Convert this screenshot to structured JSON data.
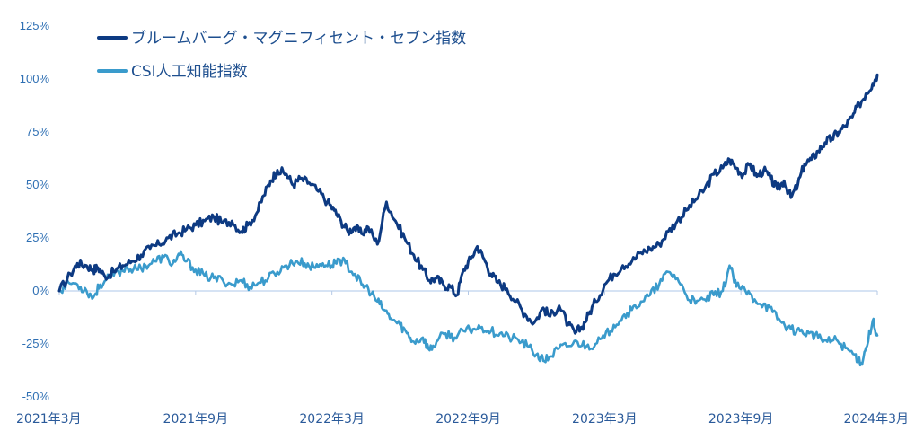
{
  "chart_data": {
    "type": "line",
    "title": "",
    "xlabel": "",
    "ylabel": "",
    "ylim": [
      -50,
      125
    ],
    "yticks": [
      -50,
      -25,
      0,
      25,
      50,
      75,
      100,
      125
    ],
    "ytick_labels": [
      "-50%",
      "-25%",
      "0%",
      "25%",
      "50%",
      "75%",
      "100%",
      "125%"
    ],
    "xlim": [
      0,
      36
    ],
    "xticks": [
      0,
      6,
      12,
      18,
      24,
      30,
      36
    ],
    "xtick_labels": [
      "2021年3月",
      "2021年9月",
      "2022年3月",
      "2022年9月",
      "2023年3月",
      "2023年9月",
      "2024年3月"
    ],
    "x_unit": "months since 2021年3月",
    "legend_position": "top-left",
    "zero_line": true,
    "series": [
      {
        "name": "ブルームバーグ・マグニフィセント・セブン指数",
        "color": "#0d3a82",
        "points": [
          [
            0,
            0
          ],
          [
            0.5,
            8
          ],
          [
            0.8,
            13
          ],
          [
            1.2,
            12
          ],
          [
            1.5,
            10
          ],
          [
            1.7,
            11
          ],
          [
            2,
            7
          ],
          [
            2.4,
            9
          ],
          [
            2.8,
            12
          ],
          [
            3.2,
            14
          ],
          [
            3.6,
            17
          ],
          [
            4,
            20
          ],
          [
            4.4,
            22
          ],
          [
            4.8,
            25
          ],
          [
            5.2,
            27
          ],
          [
            5.6,
            29
          ],
          [
            6,
            31
          ],
          [
            6.4,
            33
          ],
          [
            6.8,
            35
          ],
          [
            7.2,
            32
          ],
          [
            7.6,
            33
          ],
          [
            8,
            28
          ],
          [
            8.3,
            31
          ],
          [
            8.7,
            37
          ],
          [
            9,
            45
          ],
          [
            9.3,
            52
          ],
          [
            9.6,
            57
          ],
          [
            10,
            55
          ],
          [
            10.3,
            50
          ],
          [
            10.6,
            53
          ],
          [
            11,
            51
          ],
          [
            11.4,
            47
          ],
          [
            11.8,
            42
          ],
          [
            12.1,
            38
          ],
          [
            12.4,
            33
          ],
          [
            12.7,
            28
          ],
          [
            13,
            30
          ],
          [
            13.3,
            27
          ],
          [
            13.6,
            30
          ],
          [
            14,
            22
          ],
          [
            14.4,
            42
          ],
          [
            14.8,
            33
          ],
          [
            15.2,
            25
          ],
          [
            15.6,
            17
          ],
          [
            16,
            10
          ],
          [
            16.3,
            5
          ],
          [
            16.6,
            6
          ],
          [
            16.9,
            3
          ],
          [
            17.2,
            2
          ],
          [
            17.5,
            -2
          ],
          [
            17.8,
            10
          ],
          [
            18.1,
            15
          ],
          [
            18.4,
            21
          ],
          [
            18.7,
            15
          ],
          [
            19,
            8
          ],
          [
            19.3,
            4
          ],
          [
            19.7,
            1
          ],
          [
            20.1,
            -5
          ],
          [
            20.5,
            -11
          ],
          [
            20.9,
            -15
          ],
          [
            21.3,
            -8
          ],
          [
            21.6,
            -12
          ],
          [
            22,
            -7
          ],
          [
            22.4,
            -16
          ],
          [
            22.7,
            -20
          ],
          [
            23,
            -17
          ],
          [
            23.3,
            -11
          ],
          [
            23.6,
            -5
          ],
          [
            24,
            3
          ],
          [
            24.4,
            8
          ],
          [
            24.8,
            12
          ],
          [
            25.2,
            14
          ],
          [
            25.6,
            18
          ],
          [
            26,
            20
          ],
          [
            26.4,
            22
          ],
          [
            26.8,
            28
          ],
          [
            27.2,
            33
          ],
          [
            27.6,
            38
          ],
          [
            28,
            43
          ],
          [
            28.4,
            48
          ],
          [
            28.8,
            55
          ],
          [
            29.2,
            58
          ],
          [
            29.5,
            62
          ],
          [
            29.8,
            58
          ],
          [
            30.1,
            55
          ],
          [
            30.4,
            60
          ],
          [
            30.7,
            54
          ],
          [
            31,
            57
          ],
          [
            31.3,
            53
          ],
          [
            31.6,
            48
          ],
          [
            31.9,
            52
          ],
          [
            32.2,
            44
          ],
          [
            32.5,
            50
          ],
          [
            32.8,
            60
          ],
          [
            33.1,
            62
          ],
          [
            33.4,
            66
          ],
          [
            33.7,
            70
          ],
          [
            34,
            72
          ],
          [
            34.3,
            75
          ],
          [
            34.6,
            78
          ],
          [
            34.9,
            82
          ],
          [
            35.2,
            88
          ],
          [
            35.5,
            93
          ],
          [
            35.8,
            98
          ],
          [
            36,
            102
          ]
        ]
      },
      {
        "name": "CSI人工知能指数",
        "color": "#3a9bcc",
        "points": [
          [
            0,
            0
          ],
          [
            0.4,
            4
          ],
          [
            0.8,
            3
          ],
          [
            1.2,
            0
          ],
          [
            1.5,
            -3
          ],
          [
            1.8,
            3
          ],
          [
            2.2,
            6
          ],
          [
            2.6,
            9
          ],
          [
            3,
            11
          ],
          [
            3.4,
            10
          ],
          [
            3.8,
            12
          ],
          [
            4.2,
            14
          ],
          [
            4.6,
            16
          ],
          [
            5,
            13
          ],
          [
            5.3,
            17
          ],
          [
            5.6,
            14
          ],
          [
            6,
            10
          ],
          [
            6.4,
            7
          ],
          [
            6.8,
            6
          ],
          [
            7.2,
            5
          ],
          [
            7.6,
            3
          ],
          [
            8,
            5
          ],
          [
            8.4,
            2
          ],
          [
            8.8,
            4
          ],
          [
            9.2,
            6
          ],
          [
            9.6,
            9
          ],
          [
            10,
            12
          ],
          [
            10.4,
            14
          ],
          [
            10.8,
            13
          ],
          [
            11.2,
            11
          ],
          [
            11.6,
            13
          ],
          [
            12,
            12
          ],
          [
            12.3,
            15
          ],
          [
            12.6,
            13
          ],
          [
            13,
            8
          ],
          [
            13.3,
            3
          ],
          [
            13.6,
            1
          ],
          [
            14,
            -5
          ],
          [
            14.3,
            -9
          ],
          [
            14.6,
            -13
          ],
          [
            15,
            -16
          ],
          [
            15.3,
            -20
          ],
          [
            15.6,
            -24
          ],
          [
            16,
            -22
          ],
          [
            16.3,
            -28
          ],
          [
            16.6,
            -24
          ],
          [
            17,
            -20
          ],
          [
            17.4,
            -22
          ],
          [
            17.8,
            -19
          ],
          [
            18.2,
            -18
          ],
          [
            18.6,
            -17
          ],
          [
            19,
            -19
          ],
          [
            19.4,
            -20
          ],
          [
            19.8,
            -22
          ],
          [
            20.2,
            -23
          ],
          [
            20.6,
            -26
          ],
          [
            21,
            -30
          ],
          [
            21.3,
            -33
          ],
          [
            21.6,
            -31
          ],
          [
            22,
            -27
          ],
          [
            22.4,
            -26
          ],
          [
            22.8,
            -24
          ],
          [
            23.2,
            -26
          ],
          [
            23.6,
            -25
          ],
          [
            24,
            -22
          ],
          [
            24.4,
            -16
          ],
          [
            24.8,
            -12
          ],
          [
            25.2,
            -9
          ],
          [
            25.6,
            -5
          ],
          [
            26,
            -2
          ],
          [
            26.4,
            3
          ],
          [
            26.8,
            9
          ],
          [
            27.2,
            6
          ],
          [
            27.6,
            -2
          ],
          [
            28,
            -6
          ],
          [
            28.4,
            -4
          ],
          [
            28.8,
            -2
          ],
          [
            29.2,
            0
          ],
          [
            29.5,
            12
          ],
          [
            29.8,
            2
          ],
          [
            30.2,
            0
          ],
          [
            30.6,
            -4
          ],
          [
            31,
            -6
          ],
          [
            31.4,
            -10
          ],
          [
            31.8,
            -15
          ],
          [
            32.2,
            -18
          ],
          [
            32.6,
            -19
          ],
          [
            33,
            -20
          ],
          [
            33.4,
            -22
          ],
          [
            33.8,
            -24
          ],
          [
            34.2,
            -23
          ],
          [
            34.6,
            -27
          ],
          [
            35,
            -30
          ],
          [
            35.3,
            -34
          ],
          [
            35.5,
            -27
          ],
          [
            35.8,
            -14
          ],
          [
            36,
            -21
          ]
        ]
      }
    ]
  }
}
